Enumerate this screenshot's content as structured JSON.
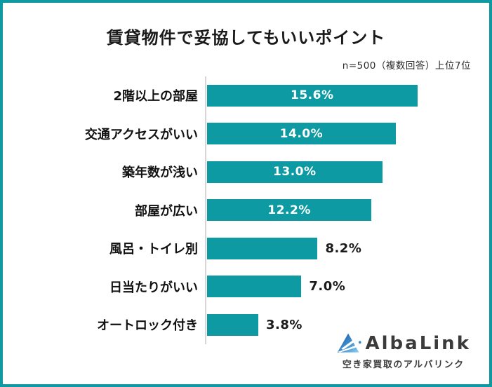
{
  "chart_data": {
    "type": "bar",
    "orientation": "horizontal",
    "title": "賃貸物件で妥協してもいいポイント",
    "note": "n=500（複数回答）上位7位",
    "categories": [
      "2階以上の部屋",
      "交通アクセスがいい",
      "築年数が浅い",
      "部屋が広い",
      "風呂・トイレ別",
      "日当たりがいい",
      "オートロック付き"
    ],
    "values": [
      15.6,
      14.0,
      13.0,
      12.2,
      8.2,
      7.0,
      3.8
    ],
    "value_labels": [
      "15.6%",
      "14.0%",
      "13.0%",
      "12.2%",
      "8.2%",
      "7.0%",
      "3.8%"
    ],
    "label_positions": [
      "inside",
      "inside",
      "inside",
      "inside",
      "outside",
      "outside",
      "outside"
    ],
    "xlim": [
      0,
      20
    ],
    "grid": false,
    "legend": false,
    "bar_color": "#0d9aa2",
    "inside_label_color": "#ffffff",
    "outside_label_color": "#1a1a1a"
  },
  "frame": {
    "border_color": "#0d9aa2"
  },
  "logo": {
    "name": "AlbaLink",
    "tagline": "空き家買取のアルバリンク",
    "text_color": "#3b3b3b",
    "icon_colors": [
      "#1a55a5",
      "#3f90cf",
      "#8ed0f0"
    ]
  }
}
